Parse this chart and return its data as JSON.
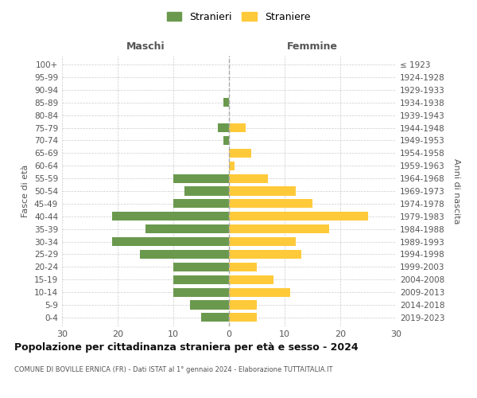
{
  "age_groups": [
    "100+",
    "95-99",
    "90-94",
    "85-89",
    "80-84",
    "75-79",
    "70-74",
    "65-69",
    "60-64",
    "55-59",
    "50-54",
    "45-49",
    "40-44",
    "35-39",
    "30-34",
    "25-29",
    "20-24",
    "15-19",
    "10-14",
    "5-9",
    "0-4"
  ],
  "birth_years": [
    "≤ 1923",
    "1924-1928",
    "1929-1933",
    "1934-1938",
    "1939-1943",
    "1944-1948",
    "1949-1953",
    "1954-1958",
    "1959-1963",
    "1964-1968",
    "1969-1973",
    "1974-1978",
    "1979-1983",
    "1984-1988",
    "1989-1993",
    "1994-1998",
    "1999-2003",
    "2004-2008",
    "2009-2013",
    "2014-2018",
    "2019-2023"
  ],
  "males": [
    0,
    0,
    0,
    1,
    0,
    2,
    1,
    0,
    0,
    10,
    8,
    10,
    21,
    15,
    21,
    16,
    10,
    10,
    10,
    7,
    5
  ],
  "females": [
    0,
    0,
    0,
    0,
    0,
    3,
    0,
    4,
    1,
    7,
    12,
    15,
    25,
    18,
    12,
    13,
    5,
    8,
    11,
    5,
    5
  ],
  "male_color": "#6a994e",
  "female_color": "#ffca3a",
  "title": "Popolazione per cittadinanza straniera per età e sesso - 2024",
  "subtitle": "COMUNE DI BOVILLE ERNICA (FR) - Dati ISTAT al 1° gennaio 2024 - Elaborazione TUTTAITALIA.IT",
  "xlabel_left": "Maschi",
  "xlabel_right": "Femmine",
  "ylabel_left": "Fasce di età",
  "ylabel_right": "Anni di nascita",
  "legend_stranieri": "Stranieri",
  "legend_straniere": "Straniere",
  "xlim": 30,
  "background_color": "#ffffff",
  "grid_color": "#cccccc"
}
